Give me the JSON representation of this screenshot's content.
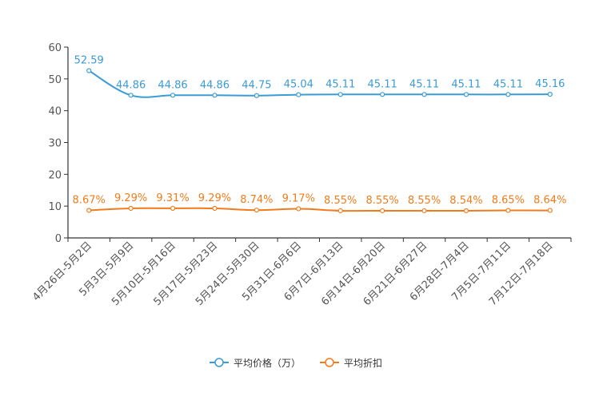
{
  "chart_data": {
    "type": "line",
    "title": "",
    "xlabel": "",
    "ylabel": "",
    "ylim": [
      0,
      60
    ],
    "yticks": [
      0,
      10,
      20,
      30,
      40,
      50,
      60
    ],
    "grid": false,
    "legend_position": "bottom-center",
    "categories": [
      "4月26日-5月2日",
      "5月3日-5月9日",
      "5月10日-5月16日",
      "5月17日-5月23日",
      "5月24日-5月30日",
      "5月31日-6月6日",
      "6月7日-6月13日",
      "6月14日-6月20日",
      "6月21日-6月27日",
      "6月28日-7月4日",
      "7月5日-7月11日",
      "7月12日-7月18日"
    ],
    "series": [
      {
        "name": "平均价格（万）",
        "color": "#3a9bd5",
        "values": [
          52.59,
          44.86,
          44.86,
          44.86,
          44.75,
          45.04,
          45.11,
          45.11,
          45.11,
          45.11,
          45.11,
          45.16
        ],
        "labels": [
          "52.59",
          "44.86",
          "44.86",
          "44.86",
          "44.75",
          "45.04",
          "45.11",
          "45.11",
          "45.11",
          "45.11",
          "45.11",
          "45.16"
        ]
      },
      {
        "name": "平均折扣",
        "color": "#f07c1c",
        "values": [
          8.67,
          9.29,
          9.31,
          9.29,
          8.74,
          9.17,
          8.55,
          8.55,
          8.55,
          8.54,
          8.65,
          8.64
        ],
        "labels": [
          "8.67%",
          "9.29%",
          "9.31%",
          "9.29%",
          "8.74%",
          "9.17%",
          "8.55%",
          "8.55%",
          "8.55%",
          "8.54%",
          "8.65%",
          "8.64%"
        ]
      }
    ]
  }
}
